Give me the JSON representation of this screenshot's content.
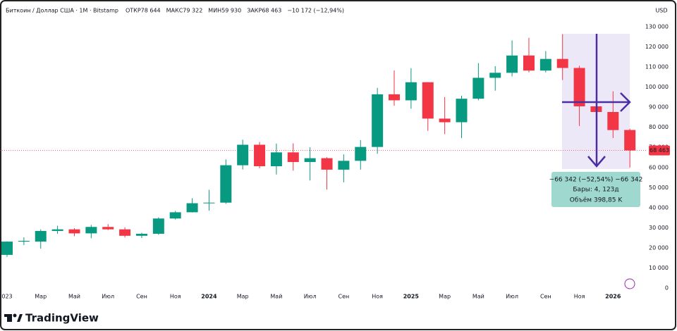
{
  "chart_data": {
    "type": "candlestick",
    "header": "Биткоин / Доллар США · 1M · Bitstamp",
    "ohlc_labels": [
      "ОТКР",
      "МАКС",
      "МИН",
      "ЗАКР"
    ],
    "ohlc_values": [
      {
        "value": 78644,
        "label": "78 644"
      },
      {
        "value": 79322,
        "label": "79 322"
      },
      {
        "value": 59930,
        "label": "59 930"
      },
      {
        "value": 68463,
        "label": "68 463"
      }
    ],
    "change": {
      "value": -10172,
      "label": "−10 172 (−12,94%)"
    },
    "currency": "USD",
    "brand": "TradingView",
    "categories": [
      "023",
      null,
      "Мар",
      null,
      "Май",
      null,
      "Июл",
      null,
      "Сен",
      null,
      "Ноя",
      null,
      "2024",
      null,
      "Мар",
      null,
      "Май",
      null,
      "Июл",
      null,
      "Сен",
      null,
      "Ноя",
      null,
      "2025",
      null,
      "Мар",
      null,
      "Май",
      null,
      "Июл",
      null,
      "Сен",
      null,
      "Ноя",
      null,
      "2026",
      null
    ],
    "series": [
      {
        "up_color": "#089981",
        "down_color": "#f23645",
        "open": [
          16500,
          23100,
          23100,
          28400,
          29200,
          27200,
          30400,
          29200,
          26000,
          27000,
          34600,
          37700,
          42200,
          42500,
          61100,
          71300,
          60600,
          67500,
          62700,
          64600,
          58900,
          63300,
          70200,
          96400,
          93400,
          102400,
          84300,
          82500,
          94200,
          104600,
          107100,
          115700,
          108200,
          114000,
          109500,
          90400,
          87600,
          78644
        ],
        "high": [
          23300,
          25200,
          29200,
          31000,
          29800,
          31400,
          31800,
          30200,
          27500,
          35200,
          38400,
          44700,
          48900,
          64000,
          73800,
          72700,
          71900,
          72000,
          70000,
          65100,
          66500,
          73600,
          99600,
          108300,
          109400,
          102500,
          95000,
          95700,
          111900,
          110400,
          123200,
          124500,
          117900,
          126300,
          110600,
          94600,
          97900,
          79322
        ],
        "low": [
          15500,
          21400,
          19600,
          27000,
          25800,
          24800,
          28800,
          25200,
          24900,
          26500,
          34100,
          37600,
          38500,
          41900,
          59000,
          59600,
          56500,
          58400,
          53500,
          49000,
          52600,
          58900,
          66800,
          90700,
          89200,
          78200,
          76600,
          74600,
          93400,
          98200,
          105300,
          107300,
          107300,
          103500,
          80600,
          84400,
          74600,
          59930
        ],
        "close": [
          23100,
          23500,
          28400,
          29200,
          27200,
          30400,
          29200,
          26000,
          27000,
          34600,
          37700,
          42200,
          42500,
          61100,
          71300,
          60600,
          67500,
          62700,
          64600,
          58900,
          63300,
          70200,
          96400,
          93400,
          102400,
          84300,
          82500,
          94200,
          104600,
          107100,
          115700,
          108200,
          114000,
          109500,
          90400,
          87600,
          78600,
          68463
        ]
      }
    ],
    "last_price": {
      "value": 68463,
      "label": "68 463"
    },
    "measure": {
      "change": "−66 342 (−52,54%) −66 342",
      "bars": "Бары: 4, 123д",
      "volume": "Объём 398,85 K"
    },
    "ylim": [
      0,
      130000
    ],
    "yticks": [
      0,
      {
        "value": 10000,
        "label": "10 000"
      },
      {
        "value": 20000,
        "label": "20 000"
      },
      {
        "value": 30000,
        "label": "30 000"
      },
      {
        "value": 40000,
        "label": "40 000"
      },
      {
        "value": 50000,
        "label": "50 000"
      },
      {
        "value": 60000,
        "label": "60 000"
      },
      {
        "value": 70000,
        "label": "70 000"
      },
      {
        "value": 80000,
        "label": "80 000"
      },
      {
        "value": 90000,
        "label": "90 000"
      },
      {
        "value": 100000,
        "label": "100 000"
      },
      {
        "value": 110000,
        "label": "110 000"
      },
      {
        "value": 120000,
        "label": "120 000"
      },
      {
        "value": 130000,
        "label": "130 000"
      }
    ]
  }
}
